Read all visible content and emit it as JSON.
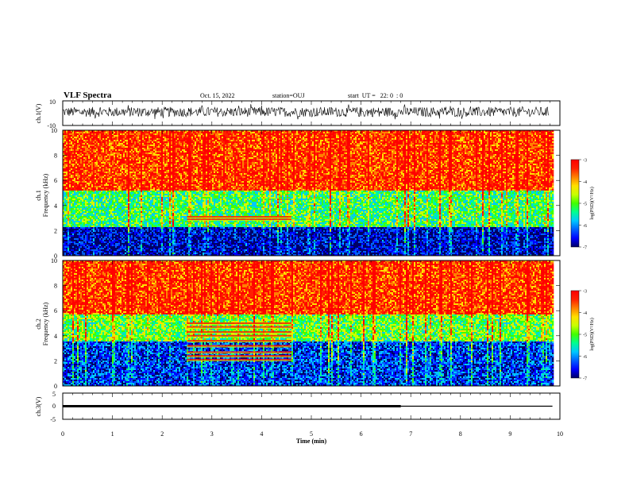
{
  "header": {
    "title": "VLF Spectra",
    "date": "Oct. 15, 2022",
    "station": "station=OUJ",
    "start": "start  UT =   22: 0  : 0"
  },
  "colors": {
    "trace": "#000000",
    "cb_stops": [
      "#000066",
      "#0000ff",
      "#0060ff",
      "#00c8ff",
      "#00ff90",
      "#40ff00",
      "#c8ff00",
      "#ffe000",
      "#ff8000",
      "#ff2000",
      "#ff0000"
    ]
  },
  "chart_data": [
    {
      "type": "line",
      "name": "ch1",
      "ylabel": "ch.1(V)",
      "ylim": [
        -10,
        10
      ],
      "yticks": [
        "10",
        "-10"
      ],
      "xlim": [
        0,
        10
      ],
      "description_values": {
        "baseline_v": 1.0,
        "amplitude_v": 4.0
      }
    },
    {
      "type": "heatmap",
      "name": "ch1_spectrogram",
      "ylabel": "ch.1\nFrequency (kHz)",
      "ylabel_l1": "ch.1",
      "ylabel_l2": "Frequency (kHz)",
      "ylim": [
        0,
        10
      ],
      "yticks": [
        "0",
        "2",
        "4",
        "6",
        "8",
        "10"
      ],
      "xlim": [
        0,
        10
      ],
      "colorbar": {
        "label": "log(PSD)(V²/Hz)",
        "range": [
          -7,
          -3
        ],
        "ticks": [
          "-3",
          "-4",
          "-5",
          "-6",
          "-7"
        ]
      },
      "bands": [
        {
          "f_from": 0,
          "f_to": 2.4,
          "level": -6.6
        },
        {
          "f_from": 2.4,
          "f_to": 5.2,
          "level": -5.2
        },
        {
          "f_from": 5.2,
          "f_to": 10,
          "level": -3.6
        }
      ],
      "features": {
        "stripes": [
          {
            "t_from": 2.5,
            "t_to": 4.6,
            "f": [
              2.9,
              3.1
            ]
          }
        ]
      }
    },
    {
      "type": "heatmap",
      "name": "ch2_spectrogram",
      "ylabel": "ch.2\nFrequency (kHz)",
      "ylabel_l1": "ch.2",
      "ylabel_l2": "Frequency (kHz)",
      "ylim": [
        0,
        10
      ],
      "yticks": [
        "0",
        "2",
        "4",
        "6",
        "8",
        "10"
      ],
      "xlim": [
        0,
        10
      ],
      "colorbar": {
        "label": "log(PSD)(V²/Hz)",
        "range": [
          -7,
          -3
        ],
        "ticks": [
          "-3",
          "-4",
          "-5",
          "-6",
          "-7"
        ]
      },
      "bands": [
        {
          "f_from": 0,
          "f_to": 3.6,
          "level": -6.3
        },
        {
          "f_from": 3.6,
          "f_to": 5.8,
          "level": -5.0
        },
        {
          "f_from": 5.8,
          "f_to": 10,
          "level": -3.6
        }
      ],
      "features": {
        "stripes": [
          {
            "t_from": 2.5,
            "t_to": 4.6,
            "f": [
              2.1,
              2.4,
              2.7,
              3.2,
              3.6,
              4.0,
              4.3,
              4.7,
              5.0
            ]
          }
        ]
      }
    },
    {
      "type": "line",
      "name": "ch3",
      "ylabel": "ch.3(V)",
      "ylim": [
        -5,
        5
      ],
      "yticks": [
        "5",
        "0",
        "-5"
      ],
      "xlim": [
        0,
        10
      ],
      "series": [
        {
          "x": [
            0,
            6.8
          ],
          "y": [
            0,
            0
          ],
          "style": "thick"
        },
        {
          "x": [
            6.8,
            9.85
          ],
          "y": [
            0,
            0
          ],
          "style": "thin"
        }
      ]
    }
  ],
  "xaxis": {
    "label": "Time (min)",
    "ticks": [
      "0",
      "1",
      "2",
      "3",
      "4",
      "5",
      "6",
      "7",
      "8",
      "9",
      "10"
    ],
    "xlim": [
      0,
      10
    ]
  }
}
